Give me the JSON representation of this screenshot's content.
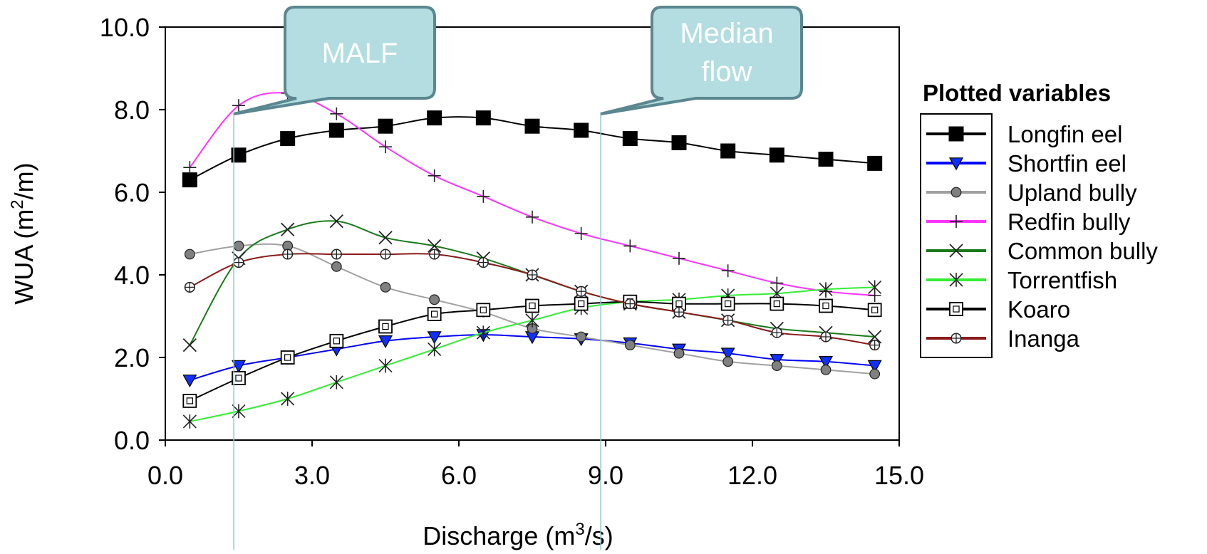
{
  "chart_data": {
    "type": "line",
    "xlabel": {
      "pre": "Discharge (m",
      "sup": "3",
      "post": "/s)"
    },
    "ylabel": {
      "pre": "WUA (m",
      "sup": "2",
      "post": "/m)"
    },
    "xlim": [
      0,
      15
    ],
    "ylim": [
      0,
      10
    ],
    "x_ticks": [
      "0.0",
      "3.0",
      "6.0",
      "9.0",
      "12.0",
      "15.0"
    ],
    "y_ticks": [
      "0.0",
      "2.0",
      "4.0",
      "6.0",
      "8.0",
      "10.0"
    ],
    "grid": false,
    "legend": {
      "title": "Plotted variables",
      "position": "right"
    },
    "x": [
      0.5,
      1.5,
      2.5,
      3.5,
      4.5,
      5.5,
      6.5,
      7.5,
      8.5,
      9.5,
      10.5,
      11.5,
      12.5,
      13.5,
      14.5
    ],
    "series": [
      {
        "name": "Longfin eel",
        "color": "#000000",
        "marker": "filled-square",
        "values": [
          6.3,
          6.9,
          7.3,
          7.5,
          7.6,
          7.8,
          7.8,
          7.6,
          7.5,
          7.3,
          7.2,
          7.0,
          6.9,
          6.8,
          6.7
        ]
      },
      {
        "name": "Shortfin eel",
        "color": "#0000ff",
        "marker": "filled-triangle-down",
        "values": [
          1.45,
          1.8,
          2.0,
          2.2,
          2.4,
          2.5,
          2.55,
          2.5,
          2.45,
          2.35,
          2.2,
          2.1,
          1.95,
          1.9,
          1.8
        ]
      },
      {
        "name": "Upland bully",
        "color": "#a0a0a0",
        "marker": "filled-circle",
        "values": [
          4.5,
          4.7,
          4.7,
          4.2,
          3.7,
          3.4,
          3.1,
          2.7,
          2.5,
          2.3,
          2.1,
          1.9,
          1.8,
          1.7,
          1.6
        ]
      },
      {
        "name": "Redfin bully",
        "color": "#ff33ff",
        "marker": "plus",
        "values": [
          6.6,
          8.1,
          8.4,
          7.9,
          7.1,
          6.4,
          5.9,
          5.4,
          5.0,
          4.7,
          4.4,
          4.1,
          3.8,
          3.6,
          3.5
        ]
      },
      {
        "name": "Common bully",
        "color": "#1a7a1a",
        "marker": "x",
        "values": [
          2.3,
          4.4,
          5.1,
          5.3,
          4.9,
          4.7,
          4.4,
          4.0,
          3.6,
          3.3,
          3.1,
          2.9,
          2.7,
          2.6,
          2.5
        ]
      },
      {
        "name": "Torrentfish",
        "color": "#33ee33",
        "marker": "asterisk",
        "values": [
          0.45,
          0.7,
          1.0,
          1.4,
          1.8,
          2.2,
          2.6,
          2.9,
          3.2,
          3.35,
          3.4,
          3.5,
          3.55,
          3.65,
          3.7
        ]
      },
      {
        "name": "Koaro",
        "color": "#000000",
        "marker": "open-square-dot",
        "values": [
          0.95,
          1.5,
          2.0,
          2.4,
          2.75,
          3.05,
          3.15,
          3.25,
          3.3,
          3.35,
          3.3,
          3.3,
          3.3,
          3.25,
          3.15
        ]
      },
      {
        "name": "Inanga",
        "color": "#8b1a1a",
        "marker": "open-circle-plus",
        "values": [
          3.7,
          4.3,
          4.5,
          4.5,
          4.5,
          4.5,
          4.3,
          4.0,
          3.6,
          3.3,
          3.1,
          2.9,
          2.6,
          2.5,
          2.3
        ]
      }
    ],
    "annotations": [
      {
        "label": [
          "MALF"
        ],
        "x": 1.4
      },
      {
        "label": [
          "Median",
          "flow"
        ],
        "x": 8.9
      }
    ]
  },
  "style": {
    "callout_fill": "#b3dde0",
    "callout_stroke": "#5a8790",
    "reference_line_color": "#8ec7d2"
  }
}
